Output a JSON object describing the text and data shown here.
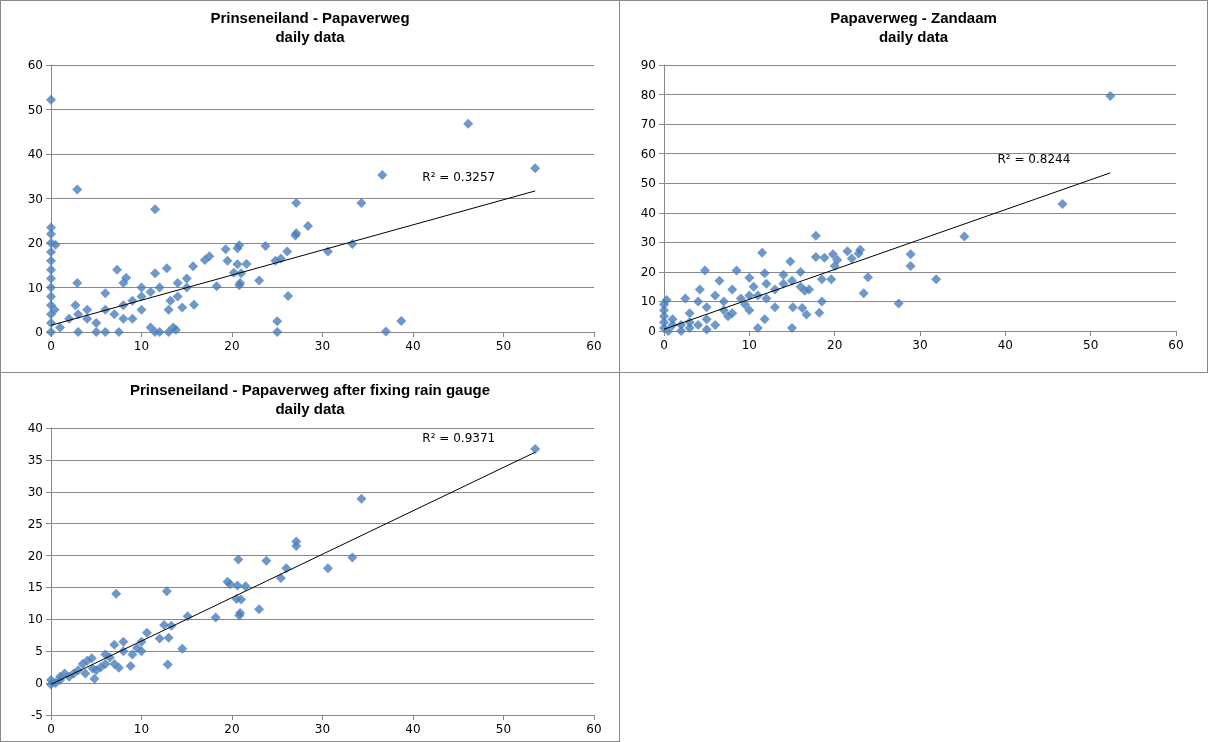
{
  "chart_data": [
    {
      "type": "scatter",
      "title": "Prinseneiland - Papaverweg",
      "subtitle": "daily data",
      "xlim": [
        0,
        60
      ],
      "xticks": [
        0,
        10,
        20,
        30,
        40,
        50,
        60
      ],
      "ylim": [
        0,
        60
      ],
      "yticks": [
        0,
        10,
        20,
        30,
        40,
        50,
        60
      ],
      "grid": "y",
      "annotations": [
        "R² = 0.3257"
      ],
      "series": [
        {
          "color": "#4a7ebb",
          "marker": "diamond",
          "x": [
            0,
            46.1,
            53.5,
            36.6,
            34.3,
            27.1,
            2.9,
            11.5,
            28.4,
            27.1,
            27,
            23.7,
            20.8,
            20.6,
            19.3,
            33.3,
            30.6,
            26.1,
            25.4,
            24.8,
            17.5,
            17,
            15.7,
            19.5,
            21.6,
            20.6,
            20.2,
            21,
            23,
            20.9,
            20.8,
            18.3,
            26.2,
            25,
            25,
            37,
            38.7,
            15.8,
            14.5,
            13.2,
            12.8,
            11.5,
            7.3,
            8.3,
            8,
            2.9,
            2.7,
            0,
            0,
            0,
            0.5,
            0,
            0,
            0,
            0,
            0,
            0,
            0,
            0,
            0,
            0,
            0.4,
            1,
            2,
            3,
            4,
            5,
            5,
            6,
            6,
            7,
            7.5,
            8,
            9,
            10,
            10,
            11,
            11,
            12,
            12,
            13,
            13.5,
            13,
            14,
            14,
            15,
            15,
            13.8,
            11.5,
            9,
            4,
            3,
            6,
            8,
            10
          ],
          "values": [
            52.2,
            46.8,
            36.8,
            35.3,
            29,
            29,
            32,
            27.6,
            23.8,
            22.2,
            21.7,
            19.3,
            19.5,
            18.8,
            18.6,
            19.8,
            18.1,
            18.1,
            16.5,
            16,
            17,
            16.2,
            14.8,
            16,
            15.3,
            15.2,
            13.3,
            13.2,
            11.6,
            11,
            10.5,
            10.3,
            8.1,
            2.4,
            0,
            0.1,
            2.5,
            6.1,
            5.5,
            7,
            14.3,
            13.2,
            14,
            12.2,
            11,
            11,
            6,
            23.5,
            22,
            20,
            19.6,
            18,
            16,
            14,
            12,
            10,
            8,
            6,
            4,
            2,
            0,
            5,
            1,
            3,
            0,
            5,
            2,
            0,
            0,
            8.7,
            4,
            0,
            6,
            7,
            8,
            5,
            1,
            9,
            10,
            0,
            0,
            1,
            5,
            11,
            8,
            12,
            10,
            0.5,
            0,
            3,
            3,
            4,
            5,
            3,
            10
          ]
        },
        {
          "type": "line",
          "color": "#000000",
          "marker": "none",
          "line_style": "solid",
          "x": [
            0,
            53.5
          ],
          "values": [
            1.5,
            31.7
          ]
        }
      ]
    },
    {
      "type": "scatter",
      "title": "Papaverweg - Zandaam",
      "subtitle": "daily data",
      "xlim": [
        0,
        60
      ],
      "xticks": [
        0,
        10,
        20,
        30,
        40,
        50,
        60
      ],
      "ylim": [
        0,
        90
      ],
      "yticks": [
        0,
        10,
        20,
        30,
        40,
        50,
        60,
        70,
        80,
        90
      ],
      "grid": "y",
      "annotations": [
        "R² = 0.8244"
      ],
      "series": [
        {
          "color": "#4a7ebb",
          "marker": "diamond",
          "x": [
            52.3,
            46.7,
            35.2,
            31.9,
            28.9,
            28.9,
            27.5,
            23.9,
            23.4,
            23,
            22.8,
            21.5,
            22,
            20.3,
            19.8,
            20,
            19.6,
            18.5,
            18.5,
            18.2,
            17.8,
            17.8,
            18.8,
            16.7,
            16.2,
            16.5,
            16,
            15.1,
            15,
            14.8,
            14,
            13,
            11.5,
            11.8,
            11.8,
            11,
            11,
            10.5,
            10,
            9.5,
            8.5,
            8,
            7.5,
            7,
            6.5,
            6,
            5,
            5,
            4.8,
            4.2,
            4,
            3,
            2.5,
            2,
            1,
            0.3,
            0,
            0,
            0,
            0,
            0,
            0.5,
            2,
            3,
            4,
            5,
            6,
            8,
            9,
            10,
            12,
            13,
            14,
            15,
            16,
            17,
            12,
            10,
            7,
            3,
            1
          ],
          "values": [
            79.5,
            43,
            32,
            17.5,
            26,
            22,
            9.3,
            18.2,
            12.8,
            27.5,
            26.2,
            27,
            24.5,
            24,
            26,
            22,
            17.5,
            17.5,
            10,
            6.2,
            32.2,
            25,
            24.8,
            5.6,
            7.8,
            13.6,
            20,
            8,
            1,
            23.5,
            19,
            8,
            26.5,
            19.5,
            4,
            1,
            12,
            15,
            18,
            9,
            20.5,
            14,
            5,
            10,
            17,
            12,
            4,
            8,
            20.5,
            14,
            10,
            6,
            11,
            2,
            4,
            10.5,
            9,
            7,
            5,
            3,
            1,
            0,
            0,
            1,
            2,
            0.5,
            2,
            6,
            11,
            7,
            11,
            14,
            16,
            17,
            15,
            14,
            16,
            12,
            7,
            3,
            2
          ]
        },
        {
          "type": "line",
          "color": "#000000",
          "marker": "none",
          "line_style": "solid",
          "x": [
            0,
            52.3
          ],
          "values": [
            0.6,
            53.5
          ]
        }
      ]
    },
    {
      "type": "scatter",
      "title": "Prinseneiland - Papaverweg after fixing rain gauge",
      "subtitle": "daily data",
      "xlim": [
        0,
        60
      ],
      "xticks": [
        0,
        10,
        20,
        30,
        40,
        50,
        60
      ],
      "ylim": [
        -5,
        40
      ],
      "yticks": [
        -5,
        0,
        5,
        10,
        15,
        20,
        25,
        30,
        35,
        40
      ],
      "grid": "y",
      "annotations": [
        "R² = 0.9371"
      ],
      "series": [
        {
          "color": "#4a7ebb",
          "marker": "diamond",
          "x": [
            53.5,
            34.3,
            27.1,
            27.1,
            33.3,
            30.6,
            23.8,
            20.7,
            26,
            25.4,
            19.5,
            19.8,
            20.6,
            21.5,
            20.5,
            21,
            23,
            20.9,
            20.8,
            18.2,
            15.1,
            12.8,
            7.2,
            12.5,
            13.3,
            13,
            12,
            10.6,
            14.5,
            12.9,
            10,
            10,
            9.5,
            8.8,
            8,
            7.5,
            7,
            6.5,
            6,
            5.5,
            4.8,
            4.5,
            4,
            3.5,
            3,
            2.5,
            2,
            1.5,
            1,
            1,
            0.5,
            0,
            0,
            8,
            9,
            7,
            5,
            6,
            3.8,
            4.6
          ],
          "values": [
            36.7,
            28.9,
            22.2,
            21.5,
            19.7,
            18,
            19.2,
            19.4,
            18,
            16.5,
            15.9,
            15.5,
            15.3,
            15.2,
            13.2,
            13.1,
            11.6,
            11,
            10.6,
            10.3,
            10.5,
            14.4,
            14,
            9.1,
            9,
            7.1,
            7,
            7.9,
            5.4,
            2.9,
            6.5,
            5,
            5.5,
            2.7,
            6.5,
            2.4,
            6,
            4,
            3,
            2.5,
            0.7,
            3.9,
            3.5,
            3,
            2,
            1.5,
            1,
            1.5,
            0.5,
            1,
            0,
            0.5,
            -0.2,
            5,
            4.5,
            3,
            2,
            4.5,
            1.5,
            2.3
          ]
        },
        {
          "type": "line",
          "color": "#000000",
          "marker": "none",
          "line_style": "solid",
          "x": [
            0,
            53.5
          ],
          "values": [
            -0.2,
            36.2
          ]
        }
      ]
    }
  ]
}
